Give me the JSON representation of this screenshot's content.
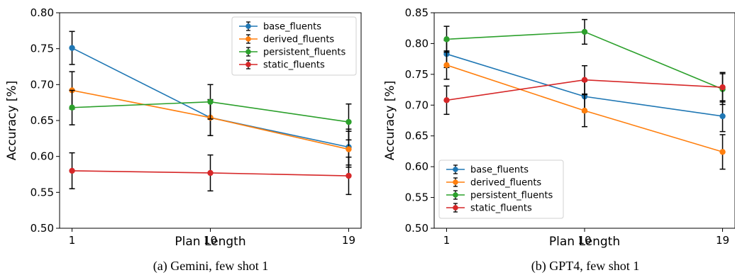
{
  "chart_data": [
    {
      "type": "line",
      "caption": "(a) Gemini, few shot 1",
      "xlabel": "Plan Length",
      "ylabel": "Accuracy [%]",
      "x": [
        1,
        10,
        19
      ],
      "x_tick_labels": [
        "1",
        "10",
        "19"
      ],
      "ylim": [
        0.5,
        0.8
      ],
      "y_ticks": [
        0.5,
        0.55,
        0.6,
        0.65,
        0.7,
        0.75,
        0.8
      ],
      "y_tick_labels": [
        "0.50",
        "0.55",
        "0.60",
        "0.65",
        "0.70",
        "0.75",
        "0.80"
      ],
      "grid": false,
      "legend_position": "top-right",
      "series": [
        {
          "name": "base_fluents",
          "color": "#1f77b4",
          "values": [
            0.751,
            0.654,
            0.613
          ],
          "errors": [
            0.023,
            0.025,
            0.025
          ]
        },
        {
          "name": "derived_fluents",
          "color": "#ff7f0e",
          "values": [
            0.692,
            0.654,
            0.61
          ],
          "errors": [
            0.026,
            0.025,
            0.025
          ]
        },
        {
          "name": "persistent_fluents",
          "color": "#2ca02c",
          "values": [
            0.668,
            0.676,
            0.648
          ],
          "errors": [
            0.024,
            0.024,
            0.025
          ]
        },
        {
          "name": "static_fluents",
          "color": "#d62728",
          "values": [
            0.58,
            0.577,
            0.573
          ],
          "errors": [
            0.025,
            0.025,
            0.026
          ]
        }
      ]
    },
    {
      "type": "line",
      "caption": "(b) GPT4, few shot 1",
      "xlabel": "Plan Length",
      "ylabel": "Accuracy [%]",
      "x": [
        1,
        10,
        19
      ],
      "x_tick_labels": [
        "1",
        "10",
        "19"
      ],
      "ylim": [
        0.5,
        0.85
      ],
      "y_ticks": [
        0.5,
        0.55,
        0.6,
        0.65,
        0.7,
        0.75,
        0.8,
        0.85
      ],
      "y_tick_labels": [
        "0.50",
        "0.55",
        "0.60",
        "0.65",
        "0.70",
        "0.75",
        "0.80",
        "0.85"
      ],
      "grid": false,
      "legend_position": "bottom-left",
      "series": [
        {
          "name": "base_fluents",
          "color": "#1f77b4",
          "values": [
            0.783,
            0.714,
            0.682
          ],
          "errors": [
            0.022,
            0.025,
            0.025
          ]
        },
        {
          "name": "derived_fluents",
          "color": "#ff7f0e",
          "values": [
            0.765,
            0.691,
            0.624
          ],
          "errors": [
            0.023,
            0.026,
            0.028
          ]
        },
        {
          "name": "persistent_fluents",
          "color": "#2ca02c",
          "values": [
            0.807,
            0.819,
            0.726
          ],
          "errors": [
            0.021,
            0.02,
            0.025
          ]
        },
        {
          "name": "static_fluents",
          "color": "#d62728",
          "values": [
            0.708,
            0.741,
            0.729
          ],
          "errors": [
            0.023,
            0.023,
            0.024
          ]
        }
      ]
    }
  ]
}
